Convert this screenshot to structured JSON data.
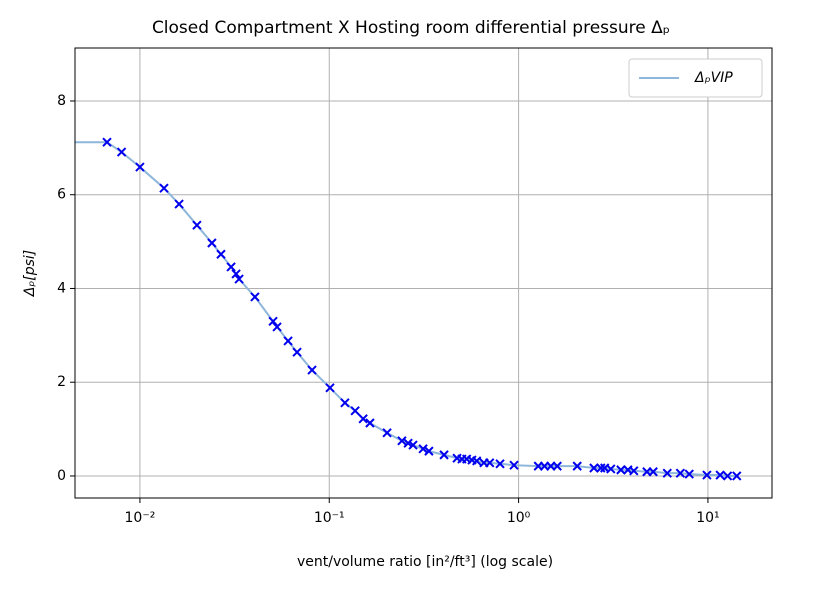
{
  "chart_data": {
    "type": "line",
    "title": "Closed Compartment X Hosting room differential pressure Δₚ",
    "x_label": "vent/volume ratio [in²/ft³] (log scale)",
    "y_label": "Δₚ[psi]",
    "x_scale": "log",
    "xlim": [
      0.00454,
      21.8
    ],
    "ylim": [
      -0.47,
      9.13
    ],
    "xticks": [
      {
        "value": 0.01,
        "label": "10⁻²"
      },
      {
        "value": 0.1,
        "label": "10⁻¹"
      },
      {
        "value": 1,
        "label": "10⁰"
      },
      {
        "value": 10,
        "label": "10¹"
      }
    ],
    "yticks": [
      0,
      2,
      4,
      6,
      8
    ],
    "grid": true,
    "legend": "upper right",
    "series": [
      {
        "name": "ΔₚVIP",
        "type": "line",
        "color": "#8db6da",
        "x": [
          0.00454,
          0.0067,
          0.008,
          0.01,
          0.0134,
          0.0161,
          0.02,
          0.024,
          0.0268,
          0.0303,
          0.0322,
          0.0334,
          0.0405,
          0.0505,
          0.053,
          0.0606,
          0.0676,
          0.0811,
          0.1009,
          0.121,
          0.137,
          0.151,
          0.164,
          0.202,
          0.242,
          0.261,
          0.277,
          0.313,
          0.336,
          0.404,
          0.473,
          0.502,
          0.532,
          0.567,
          0.601,
          0.656,
          0.704,
          0.798,
          0.946,
          1.27,
          1.37,
          1.48,
          1.6,
          2.04,
          2.5,
          2.72,
          2.85,
          3.07,
          3.47,
          3.78,
          4.06,
          4.76,
          5.14,
          6.1,
          7.15,
          7.97,
          9.88,
          11.6,
          12.7,
          14.2
        ],
        "values": [
          7.12,
          7.12,
          6.91,
          6.59,
          6.14,
          5.8,
          5.35,
          4.97,
          4.73,
          4.46,
          4.31,
          4.2,
          3.82,
          3.3,
          3.18,
          2.88,
          2.64,
          2.26,
          1.88,
          1.56,
          1.39,
          1.22,
          1.13,
          0.92,
          0.75,
          0.7,
          0.66,
          0.58,
          0.53,
          0.45,
          0.38,
          0.36,
          0.36,
          0.34,
          0.32,
          0.28,
          0.28,
          0.26,
          0.23,
          0.21,
          0.21,
          0.21,
          0.21,
          0.21,
          0.17,
          0.17,
          0.17,
          0.15,
          0.13,
          0.13,
          0.11,
          0.09,
          0.09,
          0.06,
          0.06,
          0.04,
          0.02,
          0.02,
          0.0,
          0.0
        ]
      },
      {
        "type": "scatter",
        "marker": "x",
        "color": "#0000ee",
        "x": [
          0.0067,
          0.008,
          0.01,
          0.0134,
          0.0161,
          0.02,
          0.024,
          0.0268,
          0.0303,
          0.0322,
          0.0334,
          0.0405,
          0.0505,
          0.053,
          0.0606,
          0.0676,
          0.0811,
          0.1009,
          0.121,
          0.137,
          0.151,
          0.164,
          0.202,
          0.242,
          0.261,
          0.277,
          0.313,
          0.336,
          0.404,
          0.473,
          0.502,
          0.532,
          0.567,
          0.601,
          0.656,
          0.704,
          0.798,
          0.946,
          1.27,
          1.37,
          1.48,
          1.6,
          2.04,
          2.5,
          2.72,
          2.85,
          3.07,
          3.47,
          3.78,
          4.06,
          4.76,
          5.14,
          6.1,
          7.15,
          7.97,
          9.88,
          11.6,
          12.7,
          14.2
        ],
        "values": [
          7.12,
          6.91,
          6.59,
          6.14,
          5.8,
          5.35,
          4.97,
          4.73,
          4.46,
          4.31,
          4.2,
          3.82,
          3.3,
          3.18,
          2.88,
          2.64,
          2.26,
          1.88,
          1.56,
          1.39,
          1.22,
          1.13,
          0.92,
          0.75,
          0.7,
          0.66,
          0.58,
          0.53,
          0.45,
          0.38,
          0.36,
          0.36,
          0.34,
          0.32,
          0.28,
          0.28,
          0.26,
          0.23,
          0.21,
          0.21,
          0.21,
          0.21,
          0.21,
          0.17,
          0.17,
          0.17,
          0.15,
          0.13,
          0.13,
          0.11,
          0.09,
          0.09,
          0.06,
          0.06,
          0.04,
          0.02,
          0.02,
          0.0,
          0.0
        ]
      }
    ]
  }
}
